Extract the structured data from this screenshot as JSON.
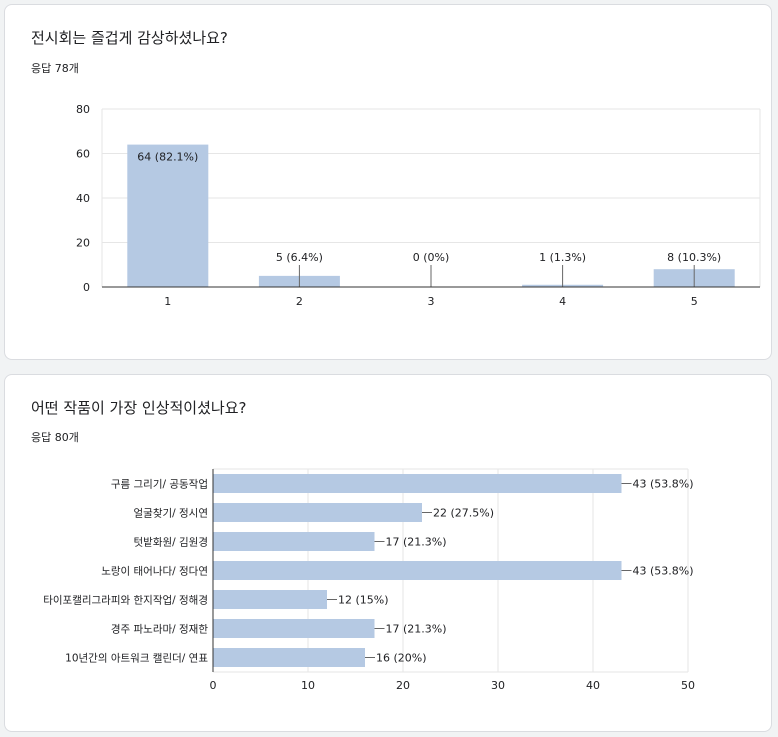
{
  "questions": [
    {
      "title": "전시회는 즐겁게 감상하셨나요?",
      "responses": "응답 78개"
    },
    {
      "title": "어떤 작품이 가장 인상적이셨나요?",
      "responses": "응답 80개"
    }
  ],
  "colors": {
    "bar": "#b5c9e3",
    "grid": "#e6e6e6",
    "axis": "#333333",
    "text": "#202124"
  },
  "chart_data": [
    {
      "type": "bar",
      "orientation": "vertical",
      "categories": [
        "1",
        "2",
        "3",
        "4",
        "5"
      ],
      "values": [
        64,
        5,
        0,
        1,
        8
      ],
      "labels": [
        "64 (82.1%)",
        "5 (6.4%)",
        "0 (0%)",
        "1 (1.3%)",
        "8 (10.3%)"
      ],
      "ylim": [
        0,
        80
      ],
      "yticks": [
        "0",
        "20",
        "40",
        "60",
        "80"
      ],
      "grid": true
    },
    {
      "type": "bar",
      "orientation": "horizontal",
      "categories": [
        "구름 그리기/ 공동작업",
        "얼굴찾기/ 정시연",
        "텃밭화원/ 김원경",
        "노랑이 태어나다/ 정다연",
        "타이포캘리그라피와 한지작업/ 정해경",
        "경주 파노라마/ 정재한",
        "10년간의 아트워크 캘린더/ 연표"
      ],
      "values": [
        43,
        22,
        17,
        43,
        12,
        17,
        16
      ],
      "labels": [
        "43 (53.8%)",
        "22 (27.5%)",
        "17 (21.3%)",
        "43 (53.8%)",
        "12 (15%)",
        "17 (21.3%)",
        "16 (20%)"
      ],
      "xlim": [
        0,
        50
      ],
      "xticks": [
        "0",
        "10",
        "20",
        "30",
        "40",
        "50"
      ],
      "grid": true
    }
  ]
}
